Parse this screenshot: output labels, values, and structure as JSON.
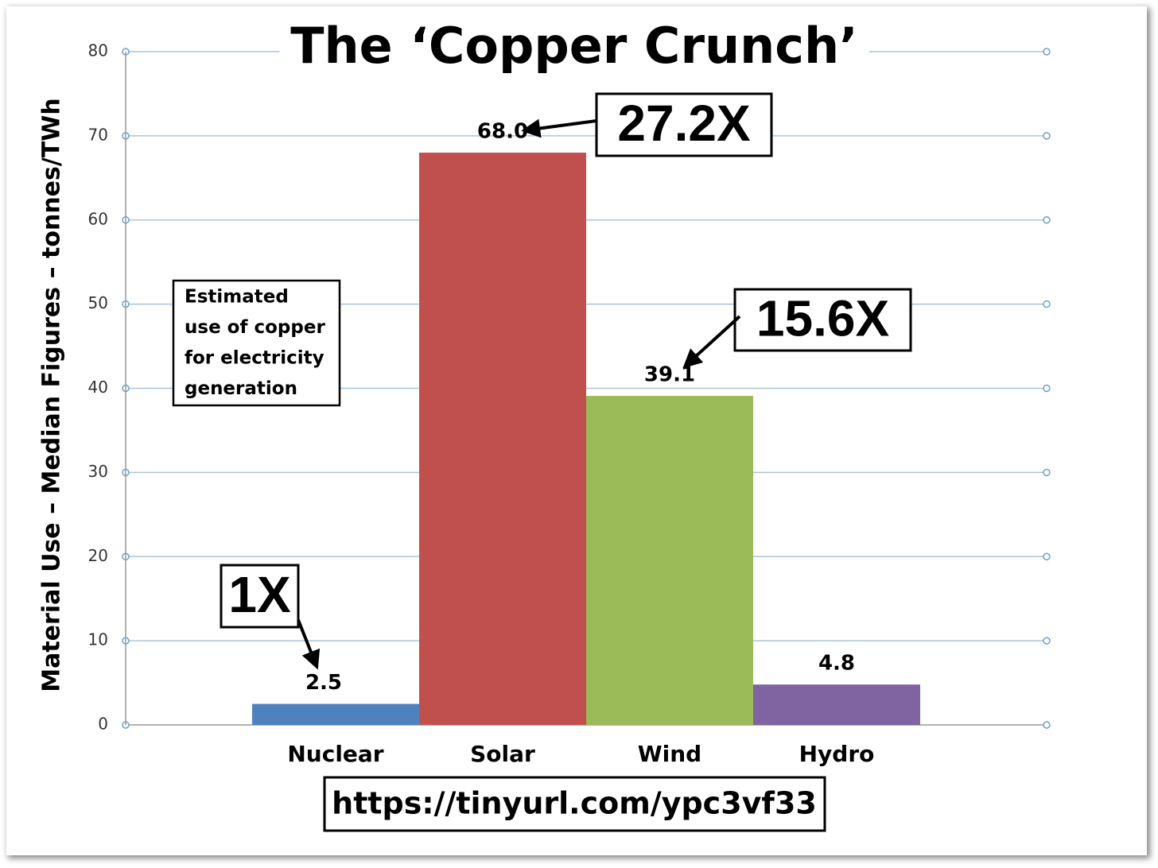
{
  "chart_data": {
    "type": "bar",
    "title": "The ‘Copper Crunch’",
    "y_label": "Material Use – Median Figures – tonnes/TWh",
    "categories": [
      "Nuclear",
      "Solar",
      "Wind",
      "Hydro"
    ],
    "values": [
      2.5,
      68.0,
      39.1,
      4.8
    ],
    "value_labels": [
      "2.5",
      "68.0",
      "39.1",
      "4.8"
    ],
    "colors": [
      "#4f81bd",
      "#c0504d",
      "#9bbb59",
      "#8064a2"
    ],
    "ylim": [
      0,
      80
    ],
    "yticks": [
      0,
      10,
      20,
      30,
      40,
      50,
      60,
      70,
      80
    ],
    "grid": true,
    "multipliers": [
      "1X",
      "27.2X",
      "15.6X",
      null
    ],
    "note": [
      "Estimated",
      "use of copper",
      "for electricity",
      "generation"
    ],
    "source": "https://tinyurl.com/ypc3vf33"
  }
}
